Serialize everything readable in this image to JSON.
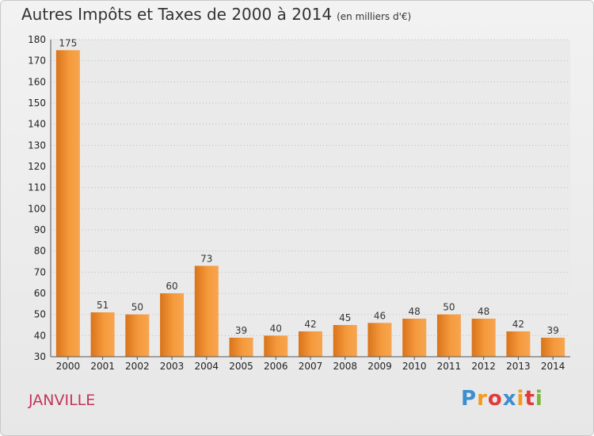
{
  "chart_data": {
    "type": "bar",
    "title": "Autres Impôts et Taxes de 2000 à 2014",
    "subtitle": "(en milliers d'€)",
    "categories": [
      "2000",
      "2001",
      "2002",
      "2003",
      "2004",
      "2005",
      "2006",
      "2007",
      "2008",
      "2009",
      "2010",
      "2011",
      "2012",
      "2013",
      "2014"
    ],
    "values": [
      175,
      51,
      50,
      60,
      73,
      39,
      40,
      42,
      45,
      46,
      48,
      50,
      48,
      42,
      39
    ],
    "ylim": [
      30,
      180
    ],
    "yticks": [
      30,
      40,
      50,
      60,
      70,
      80,
      90,
      100,
      110,
      120,
      130,
      140,
      150,
      160,
      170,
      180
    ],
    "grid": true,
    "bar_color": "#f28c28"
  },
  "place_name": "JANVILLE",
  "logo": {
    "letters": [
      "P",
      "r",
      "o",
      "x",
      "i",
      "t",
      "i"
    ],
    "colors": [
      "#3c8ed0",
      "#f39a1e",
      "#e23a3a",
      "#3c8ed0",
      "#f39a1e",
      "#e23a3a",
      "#7ab83a"
    ]
  }
}
